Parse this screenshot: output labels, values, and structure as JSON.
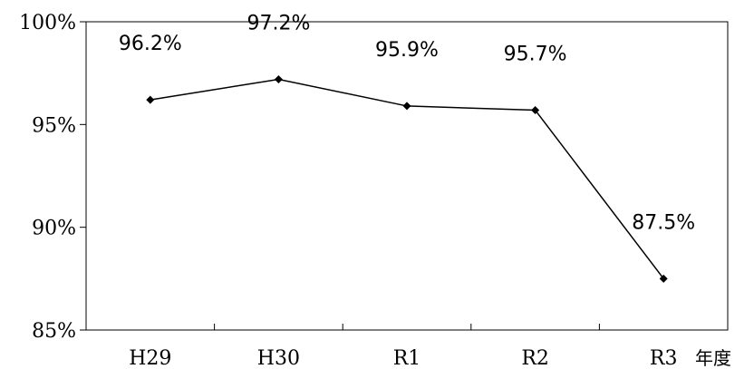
{
  "chart_data": {
    "type": "line",
    "categories": [
      "H29",
      "H30",
      "R1",
      "R2",
      "R3"
    ],
    "values": [
      96.2,
      97.2,
      95.9,
      95.7,
      87.5
    ],
    "data_labels": [
      "96.2%",
      "97.2%",
      "95.9%",
      "95.7%",
      "87.5%"
    ],
    "y_ticks": [
      "85%",
      "90%",
      "95%",
      "100%"
    ],
    "y_tick_values": [
      85,
      90,
      95,
      100
    ],
    "ylim": [
      85,
      100
    ],
    "x_unit_label": "年度",
    "grid": false,
    "legend": "none",
    "marker": "diamond",
    "colors": {
      "line": "#000000",
      "axis": "#000000",
      "background": "#ffffff"
    }
  }
}
